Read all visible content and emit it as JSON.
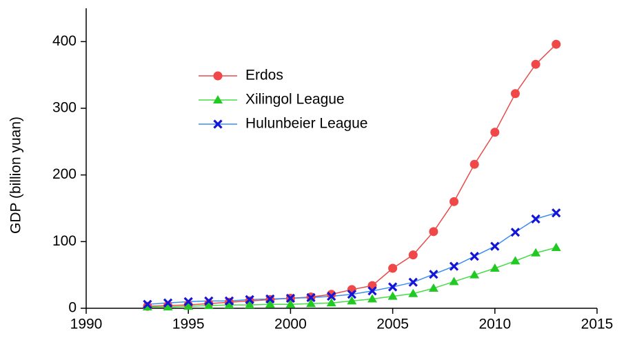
{
  "chart_data": {
    "type": "line",
    "ylabel": "GDP (billion yuan)",
    "x": [
      1993,
      1994,
      1995,
      1996,
      1997,
      1998,
      1999,
      2000,
      2001,
      2002,
      2003,
      2004,
      2005,
      2006,
      2007,
      2008,
      2009,
      2010,
      2011,
      2012,
      2013
    ],
    "series": [
      {
        "name": "Erdos",
        "color": "#f04848",
        "line_color": "#e84a4a",
        "marker": "circle",
        "values": [
          3,
          4,
          5,
          7,
          9,
          11,
          13,
          15,
          17,
          21,
          28,
          34,
          60,
          80,
          115,
          160,
          216,
          264,
          322,
          366,
          396
        ]
      },
      {
        "name": "Xilingol League",
        "color": "#22c922",
        "line_color": "#44dd44",
        "marker": "triangle",
        "values": [
          2,
          2,
          3,
          4,
          5,
          5,
          6,
          6,
          7,
          8,
          11,
          14,
          18,
          22,
          30,
          40,
          50,
          60,
          71,
          83,
          91
        ]
      },
      {
        "name": "Hulunbeier League",
        "color": "#1515d8",
        "line_color": "#3a8ef0",
        "marker": "x",
        "values": [
          6,
          8,
          10,
          11,
          11,
          13,
          14,
          15,
          16,
          18,
          21,
          26,
          32,
          39,
          51,
          63,
          78,
          93,
          114,
          134,
          143
        ]
      }
    ],
    "xlim": [
      1990,
      2015
    ],
    "xticks": [
      1990,
      1995,
      2000,
      2005,
      2010,
      2015
    ],
    "ylim": [
      0,
      450
    ],
    "yticks": [
      0,
      100,
      200,
      300,
      400
    ],
    "legend": "upper left",
    "grid": false
  }
}
